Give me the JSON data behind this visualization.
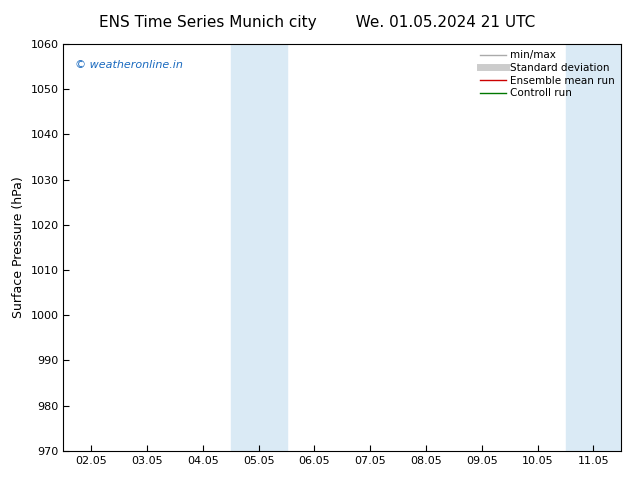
{
  "title_left": "ENS Time Series Munich city",
  "title_right": "We. 01.05.2024 21 UTC",
  "ylabel": "Surface Pressure (hPa)",
  "ylim": [
    970,
    1060
  ],
  "yticks": [
    970,
    980,
    990,
    1000,
    1010,
    1020,
    1030,
    1040,
    1050,
    1060
  ],
  "xtick_labels": [
    "02.05",
    "03.05",
    "04.05",
    "05.05",
    "06.05",
    "07.05",
    "08.05",
    "09.05",
    "10.05",
    "11.05"
  ],
  "shaded_bands": [
    {
      "x_start": 2.5,
      "x_end": 3.0
    },
    {
      "x_start": 3.0,
      "x_end": 3.5
    },
    {
      "x_start": 8.5,
      "x_end": 9.0
    },
    {
      "x_start": 9.0,
      "x_end": 9.5
    }
  ],
  "shade_color": "#daeaf5",
  "background_color": "#ffffff",
  "watermark_text": "© weatheronline.in",
  "watermark_color": "#1a6abf",
  "legend_entries": [
    {
      "label": "min/max",
      "color": "#aaaaaa",
      "lw": 1.0
    },
    {
      "label": "Standard deviation",
      "color": "#cccccc",
      "lw": 5
    },
    {
      "label": "Ensemble mean run",
      "color": "#cc0000",
      "lw": 1.0
    },
    {
      "label": "Controll run",
      "color": "#007700",
      "lw": 1.0
    }
  ],
  "spine_color": "#000000",
  "tick_color": "#000000",
  "title_fontsize": 11,
  "axis_label_fontsize": 9,
  "tick_fontsize": 8,
  "legend_fontsize": 7.5,
  "xlim": [
    -0.5,
    9.5
  ]
}
